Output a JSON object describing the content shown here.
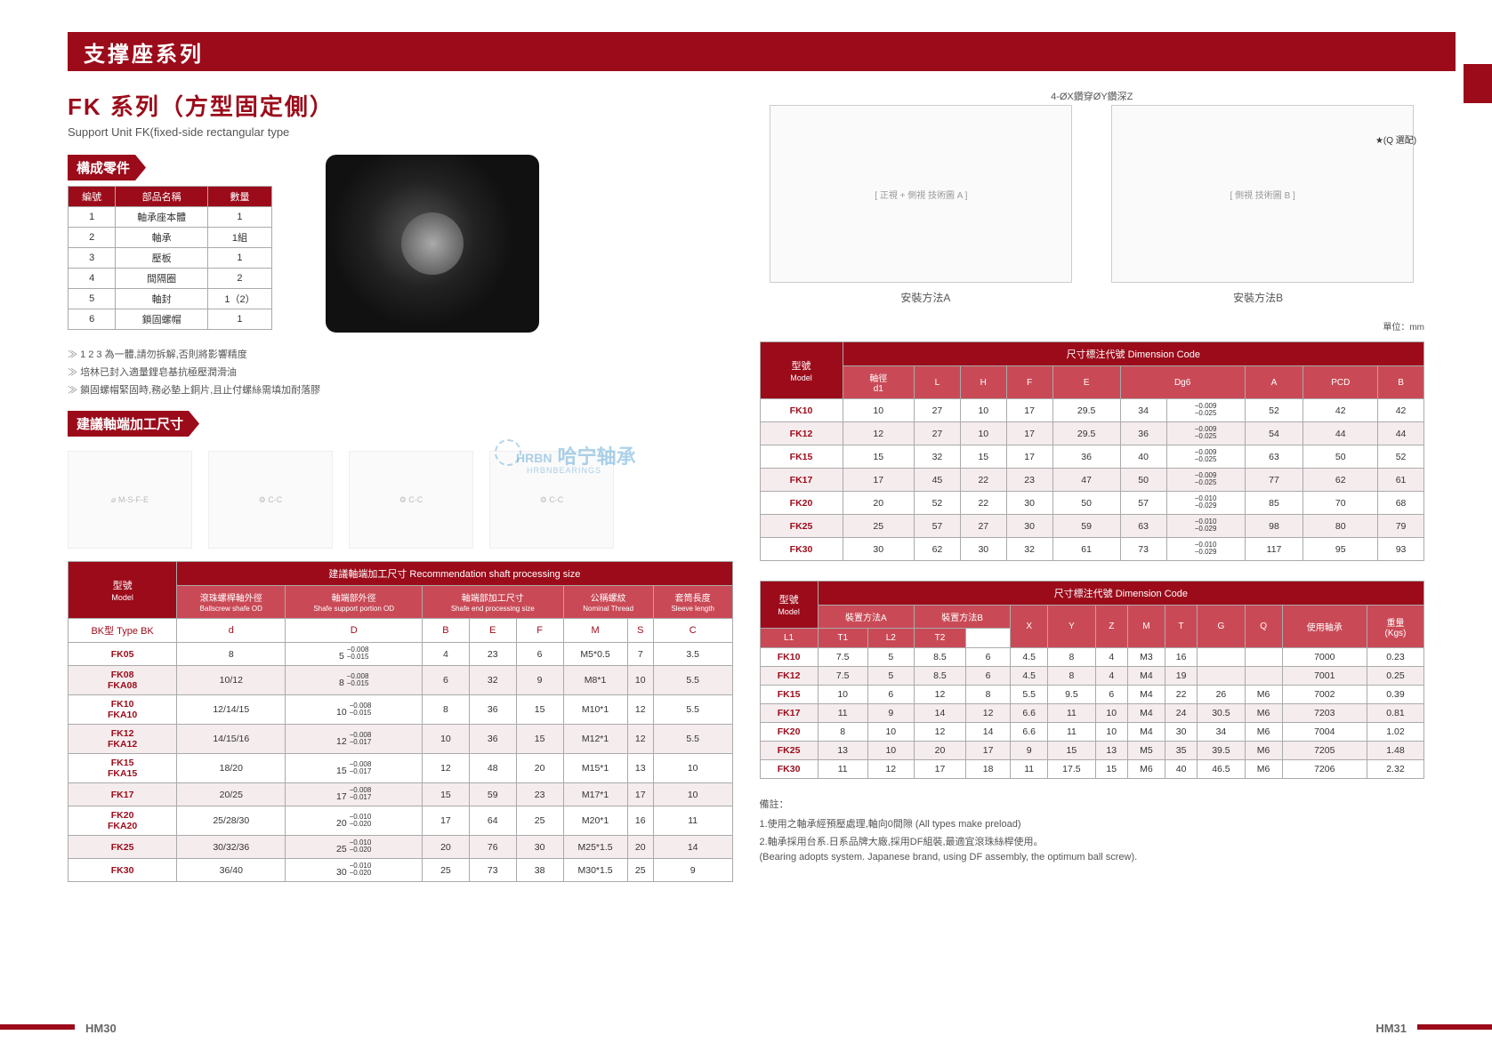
{
  "header": {
    "title": "支撑座系列"
  },
  "titles": {
    "cn": "FK 系列（方型固定側）",
    "en": "Support Unit FK(fixed-side rectangular type"
  },
  "sections": {
    "parts": "構成零件",
    "shaft": "建議軸端加工尺寸"
  },
  "parts_table": {
    "headers": [
      "編號",
      "部品名稱",
      "數量"
    ],
    "rows": [
      [
        "1",
        "軸承座本體",
        "1"
      ],
      [
        "2",
        "軸承",
        "1組"
      ],
      [
        "3",
        "壓板",
        "1"
      ],
      [
        "4",
        "間隔圈",
        "2"
      ],
      [
        "5",
        "軸封",
        "1（2）"
      ],
      [
        "6",
        "鎖固螺帽",
        "1"
      ]
    ]
  },
  "notes": [
    "1 2 3 為一體,請勿拆解,否則將影響精度",
    "培林已封入適量鋰皂基抗極壓潤滑油",
    "鎖固螺帽緊固時,務必墊上銅片,且止付螺絲需填加耐落膠"
  ],
  "shaft_diag_labels": [
    "",
    "",
    "",
    ""
  ],
  "shaft_table": {
    "title": "建議軸端加工尺寸  Recommendation shaft processing size",
    "type_prefix": "BK型 Type BK",
    "group_headers": [
      {
        "label_cn": "滾珠螺桿軸外徑",
        "label_en": "Ballscrew shafe OD",
        "key": "d"
      },
      {
        "label_cn": "軸端部外徑",
        "label_en": "Shafe support portion OD",
        "key": "D"
      },
      {
        "label_cn": "軸端部加工尺寸",
        "label_en": "Shafe end processing size",
        "keys": [
          "B",
          "E",
          "F"
        ]
      },
      {
        "label_cn": "公稱螺紋",
        "label_en": "Nominal Thread",
        "keys": [
          "M",
          "S"
        ]
      },
      {
        "label_cn": "套筒長度",
        "label_en": "Sleeve length",
        "key": "C"
      }
    ],
    "sub_headers": [
      "d",
      "D",
      "B",
      "E",
      "F",
      "M",
      "S",
      "C"
    ],
    "model_header": "型號",
    "model_sub": "Model",
    "rows": [
      {
        "model": "FK05",
        "d": "8",
        "D": "5",
        "Dtol": "−0.008\n−0.015",
        "B": "4",
        "E": "23",
        "F": "6",
        "M": "M5*0.5",
        "S": "7",
        "C": "3.5"
      },
      {
        "model": "FK08\nFKA08",
        "d": "10/12",
        "D": "8",
        "Dtol": "−0.008\n−0.015",
        "B": "6",
        "E": "32",
        "F": "9",
        "M": "M8*1",
        "S": "10",
        "C": "5.5"
      },
      {
        "model": "FK10\nFKA10",
        "d": "12/14/15",
        "D": "10",
        "Dtol": "−0.008\n−0.015",
        "B": "8",
        "E": "36",
        "F": "15",
        "M": "M10*1",
        "S": "12",
        "C": "5.5"
      },
      {
        "model": "FK12\nFKA12",
        "d": "14/15/16",
        "D": "12",
        "Dtol": "−0.008\n−0.017",
        "B": "10",
        "E": "36",
        "F": "15",
        "M": "M12*1",
        "S": "12",
        "C": "5.5"
      },
      {
        "model": "FK15\nFKA15",
        "d": "18/20",
        "D": "15",
        "Dtol": "−0.008\n−0.017",
        "B": "12",
        "E": "48",
        "F": "20",
        "M": "M15*1",
        "S": "13",
        "C": "10"
      },
      {
        "model": "FK17",
        "d": "20/25",
        "D": "17",
        "Dtol": "−0.008\n−0.017",
        "B": "15",
        "E": "59",
        "F": "23",
        "M": "M17*1",
        "S": "17",
        "C": "10"
      },
      {
        "model": "FK20\nFKA20",
        "d": "25/28/30",
        "D": "20",
        "Dtol": "−0.010\n−0.020",
        "B": "17",
        "E": "64",
        "F": "25",
        "M": "M20*1",
        "S": "16",
        "C": "11"
      },
      {
        "model": "FK25",
        "d": "30/32/36",
        "D": "25",
        "Dtol": "−0.010\n−0.020",
        "B": "20",
        "E": "76",
        "F": "30",
        "M": "M25*1.5",
        "S": "20",
        "C": "14"
      },
      {
        "model": "FK30",
        "d": "36/40",
        "D": "30",
        "Dtol": "−0.010\n−0.020",
        "B": "25",
        "E": "73",
        "F": "38",
        "M": "M30*1.5",
        "S": "25",
        "C": "9"
      }
    ]
  },
  "right_diagrams": {
    "top_label": "4-ØX鑽穿ØY鑽深Z",
    "opt_label": "★(Q 選配)",
    "a": "安裝方法A",
    "b": "安裝方法B"
  },
  "unit": "單位：mm",
  "dim_table1": {
    "title": "尺寸標注代號 Dimension Code",
    "model_header": "型號",
    "model_sub": "Model",
    "headers": [
      "軸徑\nd1",
      "L",
      "H",
      "F",
      "E",
      "Dg6",
      "",
      "A",
      "PCD",
      "B"
    ],
    "rows": [
      {
        "m": "FK10",
        "v": [
          "10",
          "27",
          "10",
          "17",
          "29.5",
          "34",
          "−0.009\n−0.025",
          "52",
          "42",
          "42"
        ]
      },
      {
        "m": "FK12",
        "v": [
          "12",
          "27",
          "10",
          "17",
          "29.5",
          "36",
          "−0.009\n−0.025",
          "54",
          "44",
          "44"
        ]
      },
      {
        "m": "FK15",
        "v": [
          "15",
          "32",
          "15",
          "17",
          "36",
          "40",
          "−0.009\n−0.025",
          "63",
          "50",
          "52"
        ]
      },
      {
        "m": "FK17",
        "v": [
          "17",
          "45",
          "22",
          "23",
          "47",
          "50",
          "−0.009\n−0.025",
          "77",
          "62",
          "61"
        ]
      },
      {
        "m": "FK20",
        "v": [
          "20",
          "52",
          "22",
          "30",
          "50",
          "57",
          "−0.010\n−0.029",
          "85",
          "70",
          "68"
        ]
      },
      {
        "m": "FK25",
        "v": [
          "25",
          "57",
          "27",
          "30",
          "59",
          "63",
          "−0.010\n−0.029",
          "98",
          "80",
          "79"
        ]
      },
      {
        "m": "FK30",
        "v": [
          "30",
          "62",
          "30",
          "32",
          "61",
          "73",
          "−0.010\n−0.029",
          "117",
          "95",
          "93"
        ]
      }
    ]
  },
  "dim_table2": {
    "title": "尺寸標注代號 Dimension Code",
    "model_header": "型號",
    "model_sub": "Model",
    "group_a": "裝置方法A",
    "group_b": "裝置方法B",
    "headers": [
      "L1",
      "T1",
      "L2",
      "T2",
      "X",
      "Y",
      "Z",
      "M",
      "T",
      "G",
      "Q",
      "使用軸承",
      "重量\n(Kgs)"
    ],
    "rows": [
      {
        "m": "FK10",
        "v": [
          "7.5",
          "5",
          "8.5",
          "6",
          "4.5",
          "8",
          "4",
          "M3",
          "16",
          "",
          "",
          "7000",
          "0.23"
        ]
      },
      {
        "m": "FK12",
        "v": [
          "7.5",
          "5",
          "8.5",
          "6",
          "4.5",
          "8",
          "4",
          "M4",
          "19",
          "",
          "",
          "7001",
          "0.25"
        ]
      },
      {
        "m": "FK15",
        "v": [
          "10",
          "6",
          "12",
          "8",
          "5.5",
          "9.5",
          "6",
          "M4",
          "22",
          "26",
          "M6",
          "7002",
          "0.39"
        ]
      },
      {
        "m": "FK17",
        "v": [
          "11",
          "9",
          "14",
          "12",
          "6.6",
          "11",
          "10",
          "M4",
          "24",
          "30.5",
          "M6",
          "7203",
          "0.81"
        ]
      },
      {
        "m": "FK20",
        "v": [
          "8",
          "10",
          "12",
          "14",
          "6.6",
          "11",
          "10",
          "M4",
          "30",
          "34",
          "M6",
          "7004",
          "1.02"
        ]
      },
      {
        "m": "FK25",
        "v": [
          "13",
          "10",
          "20",
          "17",
          "9",
          "15",
          "13",
          "M5",
          "35",
          "39.5",
          "M6",
          "7205",
          "1.48"
        ]
      },
      {
        "m": "FK30",
        "v": [
          "11",
          "12",
          "17",
          "18",
          "11",
          "17.5",
          "15",
          "M6",
          "40",
          "46.5",
          "M6",
          "7206",
          "2.32"
        ]
      }
    ]
  },
  "footnotes": {
    "head": "備註：",
    "lines": [
      "1.使用之軸承經預壓處理,軸向0間隙 (All types make preload)",
      "2.軸承採用台系.日系品牌大廠,採用DF組裝,最適宜滾珠絲桿使用。",
      "(Bearing adopts system. Japanese brand, using DF assembly, the optimum ball screw)."
    ]
  },
  "pages": {
    "left": "HM30",
    "right": "HM31"
  },
  "watermark": {
    "main": "哈宁轴承",
    "sub": "HRBNBEARINGS",
    "prefix": "HRBN"
  },
  "colors": {
    "brand": "#9b0b1a",
    "alt_row": "#f5eced",
    "border": "#aaa"
  }
}
